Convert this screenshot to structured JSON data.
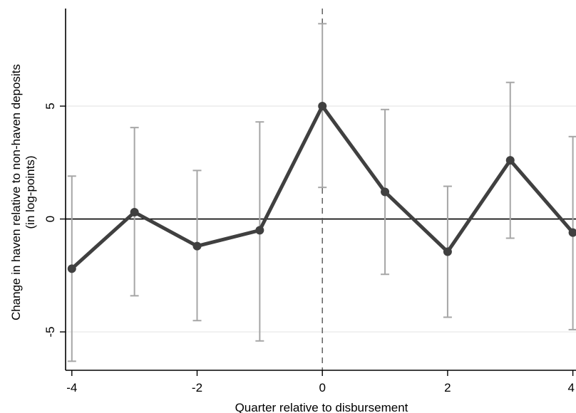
{
  "chart_data": {
    "type": "line",
    "xlabel": "Quarter relative to disbursement",
    "ylabel_lines": [
      "Change in haven relative to non-haven deposits",
      "(in log-points)"
    ],
    "xlim": [
      -4.1,
      4.05
    ],
    "ylim": [
      -6.7,
      9.7
    ],
    "x_ticks": [
      -4,
      -2,
      0,
      2,
      4
    ],
    "x_tick_labels": [
      "-4",
      "-2",
      "0",
      "2",
      "4"
    ],
    "y_ticks": [
      -5,
      0,
      5
    ],
    "y_tick_labels": [
      "-5",
      "0",
      "5"
    ],
    "grid": "horizontal",
    "reference_lines": {
      "y": 0,
      "x": 0
    },
    "x": [
      -4,
      -3,
      -2,
      -1,
      0,
      1,
      2,
      3,
      4
    ],
    "values": [
      -2.2,
      0.3,
      -1.2,
      -0.5,
      5.0,
      1.2,
      -1.45,
      2.6,
      -0.6
    ],
    "ci_lower": [
      -6.3,
      -3.4,
      -4.5,
      -5.4,
      1.4,
      -2.45,
      -4.35,
      -0.85,
      -4.9
    ],
    "ci_upper": [
      1.9,
      4.05,
      2.15,
      4.3,
      8.65,
      4.85,
      1.45,
      6.05,
      3.65
    ],
    "colors": {
      "line": "#404040",
      "ci": "#a6a6a6",
      "grid": "#e8e8e8",
      "reference": "#000000"
    }
  }
}
